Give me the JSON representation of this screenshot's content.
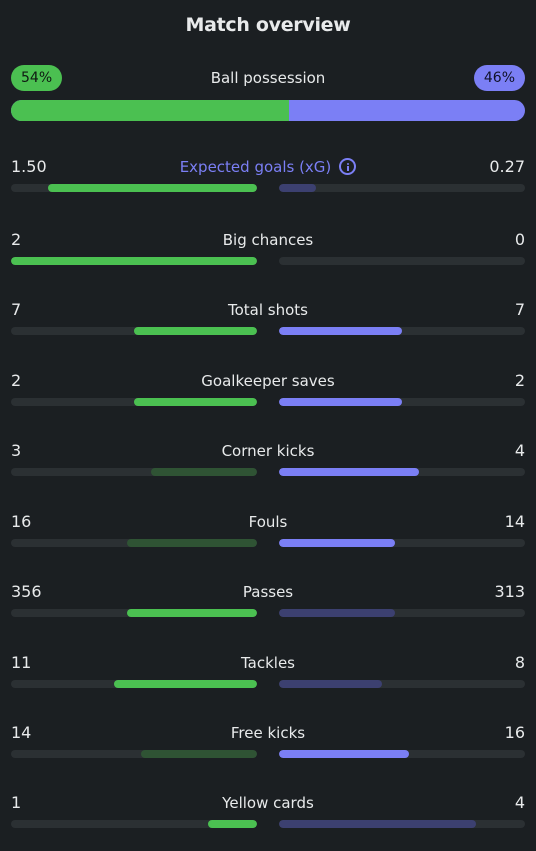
{
  "title": "Match overview",
  "possession": {
    "label": "Ball possession",
    "home": "54%",
    "away": "46%",
    "home_value": 54,
    "away_value": 46
  },
  "colors": {
    "home_bright": "#4bc051",
    "home_dim": "#2f5334",
    "away_bright": "#7b7ff5",
    "away_dim": "#3c4070",
    "track": "#2b3033"
  },
  "stats": [
    {
      "label": "Expected goals (xG)",
      "home": "1.50",
      "away": "0.27",
      "home_frac": 0.85,
      "away_frac": 0.15,
      "home_strong": true,
      "away_strong": false,
      "xg": true
    },
    {
      "label": "Big chances",
      "home": "2",
      "away": "0",
      "home_frac": 1.0,
      "away_frac": 0.0,
      "home_strong": true,
      "away_strong": false
    },
    {
      "label": "Total shots",
      "home": "7",
      "away": "7",
      "home_frac": 0.5,
      "away_frac": 0.5,
      "home_strong": true,
      "away_strong": true
    },
    {
      "label": "Goalkeeper saves",
      "home": "2",
      "away": "2",
      "home_frac": 0.5,
      "away_frac": 0.5,
      "home_strong": true,
      "away_strong": true
    },
    {
      "label": "Corner kicks",
      "home": "3",
      "away": "4",
      "home_frac": 0.43,
      "away_frac": 0.57,
      "home_strong": false,
      "away_strong": true
    },
    {
      "label": "Fouls",
      "home": "16",
      "away": "14",
      "home_frac": 0.53,
      "away_frac": 0.47,
      "home_strong": false,
      "away_strong": true
    },
    {
      "label": "Passes",
      "home": "356",
      "away": "313",
      "home_frac": 0.53,
      "away_frac": 0.47,
      "home_strong": true,
      "away_strong": false
    },
    {
      "label": "Tackles",
      "home": "11",
      "away": "8",
      "home_frac": 0.58,
      "away_frac": 0.42,
      "home_strong": true,
      "away_strong": false
    },
    {
      "label": "Free kicks",
      "home": "14",
      "away": "16",
      "home_frac": 0.47,
      "away_frac": 0.53,
      "home_strong": false,
      "away_strong": true
    },
    {
      "label": "Yellow cards",
      "home": "1",
      "away": "4",
      "home_frac": 0.2,
      "away_frac": 0.8,
      "home_strong": true,
      "away_strong": false
    }
  ]
}
